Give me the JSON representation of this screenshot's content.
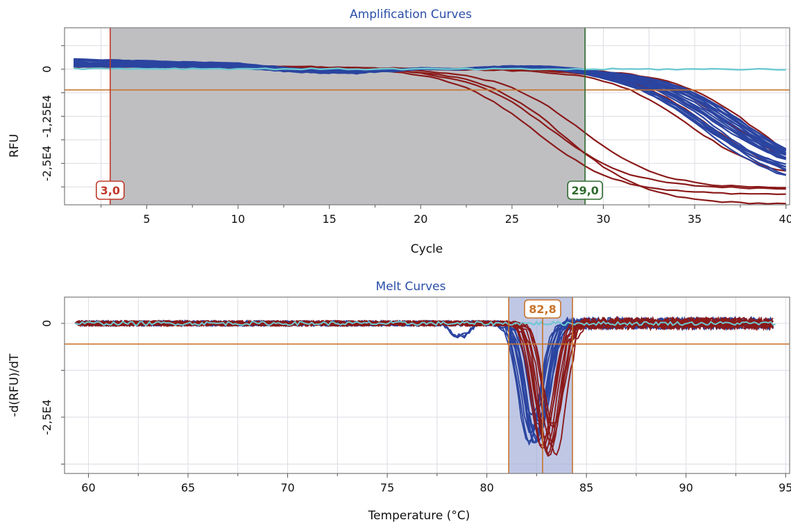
{
  "chart_data": [
    {
      "type": "line",
      "title": "Amplification Curves",
      "xlabel": "Cycle",
      "ylabel": "RFU",
      "xlim": [
        0.5,
        40.2
      ],
      "ylim": [
        -36000,
        11000
      ],
      "x_ticks": [
        5,
        10,
        15,
        20,
        25,
        30,
        35,
        40
      ],
      "y_ticks": [
        0,
        -12500,
        -25000
      ],
      "y_tick_labels": [
        "0",
        "-1,25E4",
        "-2,5E4"
      ],
      "grid": true,
      "colors": {
        "red": "#8b1a1a",
        "blue": "#2a44a0",
        "cyan": "#6cc9d0",
        "threshold": "#c8722a"
      },
      "threshold": -5500,
      "shaded_region": [
        3,
        29
      ],
      "markers": [
        {
          "x": 3,
          "label": "3,0",
          "color": "#c0392b"
        },
        {
          "x": 29,
          "label": "29,0",
          "color": "#2e6b2e"
        }
      ],
      "series_groups": [
        {
          "color": "red",
          "count": 4,
          "ct": 27.5,
          "ct_spread": 1.2,
          "plateau": -34000,
          "baseline": 2200
        },
        {
          "color": "red",
          "count": 4,
          "ct": 36.5,
          "ct_spread": 1.8,
          "plateau": -32000,
          "baseline": 1500
        },
        {
          "color": "blue",
          "count": 22,
          "ct": 36.5,
          "ct_spread": 1.4,
          "plateau": -30000,
          "baseline": 2500
        },
        {
          "color": "cyan",
          "count": 1,
          "ct": 0,
          "ct_spread": 0,
          "plateau": 0,
          "baseline": 500
        }
      ]
    },
    {
      "type": "line",
      "title": "Melt Curves",
      "xlabel": "Temperature (°C)",
      "ylabel": "-d(RFU)/dT",
      "xlim": [
        58.8,
        95.2
      ],
      "ylim": [
        -40000,
        7000
      ],
      "x_ticks": [
        60,
        65,
        70,
        75,
        80,
        85,
        90,
        95
      ],
      "y_ticks": [
        0,
        -25000
      ],
      "y_tick_labels": [
        "0",
        "-2,5E4"
      ],
      "grid": true,
      "colors": {
        "red": "#8b1a1a",
        "blue": "#2a44a0",
        "cyan": "#6cc9d0",
        "threshold": "#c8722a"
      },
      "threshold": -5500,
      "shaded_region": [
        81.1,
        84.3
      ],
      "markers": [
        {
          "x": 82.8,
          "label": "82,8",
          "color": "#c8722a"
        }
      ],
      "series_groups": [
        {
          "color": "blue",
          "count": 12,
          "peak_temp": 82.4,
          "peak_spread": 0.3,
          "peak_depth": -30000
        },
        {
          "color": "red",
          "count": 10,
          "peak_temp": 83.1,
          "peak_spread": 0.35,
          "peak_depth": -33000
        },
        {
          "color": "cyan",
          "count": 1,
          "peak_temp": 0,
          "peak_spread": 0,
          "peak_depth": 0
        }
      ]
    }
  ]
}
